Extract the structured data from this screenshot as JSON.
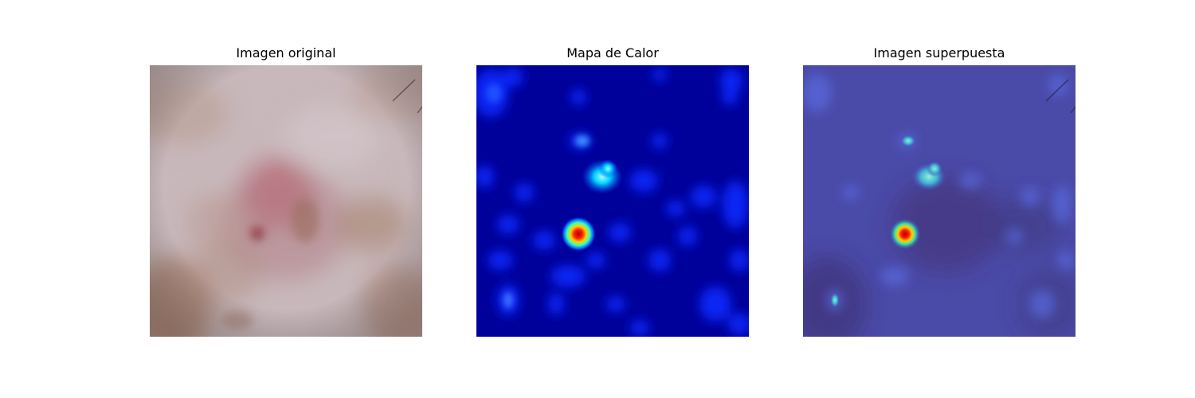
{
  "figure": {
    "panels": [
      {
        "title": "Imagen original"
      },
      {
        "title": "Mapa de Calor"
      },
      {
        "title": "Imagen superpuesta"
      }
    ]
  }
}
